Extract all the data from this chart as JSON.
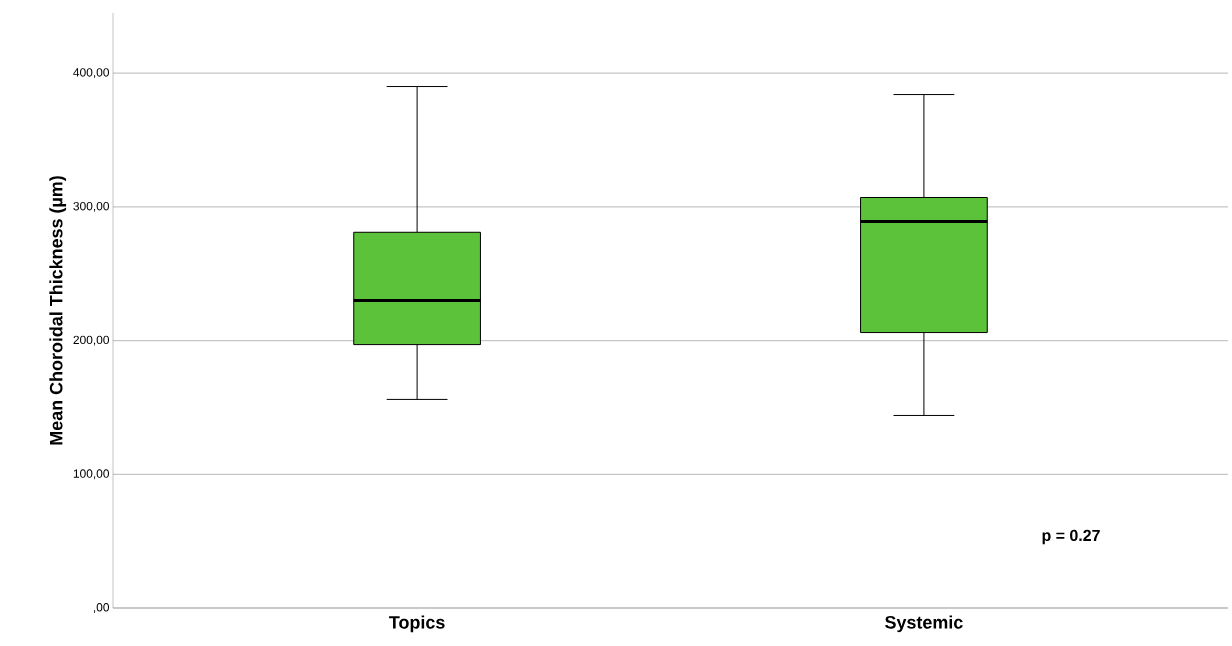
{
  "chart_data": {
    "type": "box",
    "ylabel": "Mean Choroidal Thickness (µm)",
    "categories": [
      "Topics",
      "Systemic"
    ],
    "boxes": [
      {
        "low": 156,
        "q1": 197,
        "median": 230,
        "q3": 281,
        "high": 390
      },
      {
        "low": 144,
        "q1": 206,
        "median": 289,
        "q3": 307,
        "high": 384
      }
    ],
    "color": "#5cc23a",
    "ylim": [
      0,
      445
    ],
    "yticks": [
      {
        "value": 0,
        "label": ",00"
      },
      {
        "value": 100,
        "label": "100,00"
      },
      {
        "value": 200,
        "label": "200,00"
      },
      {
        "value": 300,
        "label": "300,00"
      },
      {
        "value": 400,
        "label": "400,00"
      }
    ],
    "grid": "y",
    "annotations": [
      "p = 0.27"
    ]
  }
}
